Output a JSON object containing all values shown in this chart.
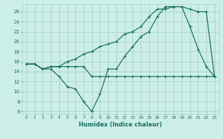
{
  "xlabel": "Humidex (Indice chaleur)",
  "bg_color": "#cceee8",
  "grid_color": "#aad4cc",
  "line_color": "#1a6e60",
  "xlim": [
    -0.5,
    23.5
  ],
  "ylim": [
    5.5,
    27.5
  ],
  "yticks": [
    6,
    8,
    10,
    12,
    14,
    16,
    18,
    20,
    22,
    24,
    26
  ],
  "xticks": [
    0,
    1,
    2,
    3,
    4,
    5,
    6,
    7,
    8,
    9,
    10,
    11,
    12,
    13,
    14,
    15,
    16,
    17,
    18,
    19,
    20,
    21,
    22,
    23
  ],
  "series1_x": [
    0,
    1,
    2,
    3,
    4,
    5,
    6,
    7,
    8,
    9,
    10,
    11,
    12,
    13,
    14,
    15,
    16,
    17,
    18,
    19,
    20,
    21,
    22,
    23
  ],
  "series1_y": [
    15.5,
    15.5,
    14.5,
    15.0,
    15.0,
    15.0,
    15.0,
    15.0,
    13.0,
    13.0,
    13.0,
    13.0,
    13.0,
    13.0,
    13.0,
    13.0,
    13.0,
    13.0,
    13.0,
    13.0,
    13.0,
    13.0,
    13.0,
    13.0
  ],
  "series2_x": [
    0,
    1,
    2,
    3,
    4,
    5,
    6,
    7,
    8,
    9,
    10,
    11,
    12,
    13,
    14,
    15,
    16,
    17,
    18,
    19,
    20,
    21,
    22,
    23
  ],
  "series2_y": [
    15.5,
    15.5,
    14.5,
    14.5,
    13.0,
    11.0,
    10.5,
    8.0,
    6.0,
    9.5,
    14.5,
    14.5,
    17.0,
    19.0,
    21.0,
    22.0,
    25.0,
    27.0,
    27.0,
    27.0,
    23.0,
    18.5,
    15.0,
    13.0
  ],
  "series3_x": [
    0,
    1,
    2,
    3,
    4,
    5,
    6,
    7,
    8,
    9,
    10,
    11,
    12,
    13,
    14,
    15,
    16,
    17,
    18,
    19,
    20,
    21,
    22,
    23
  ],
  "series3_y": [
    15.5,
    15.5,
    14.5,
    15.0,
    15.0,
    16.0,
    16.5,
    17.5,
    18.0,
    19.0,
    19.5,
    20.0,
    21.5,
    22.0,
    23.0,
    25.0,
    26.5,
    26.5,
    27.0,
    27.0,
    26.5,
    26.0,
    26.0,
    13.0
  ]
}
